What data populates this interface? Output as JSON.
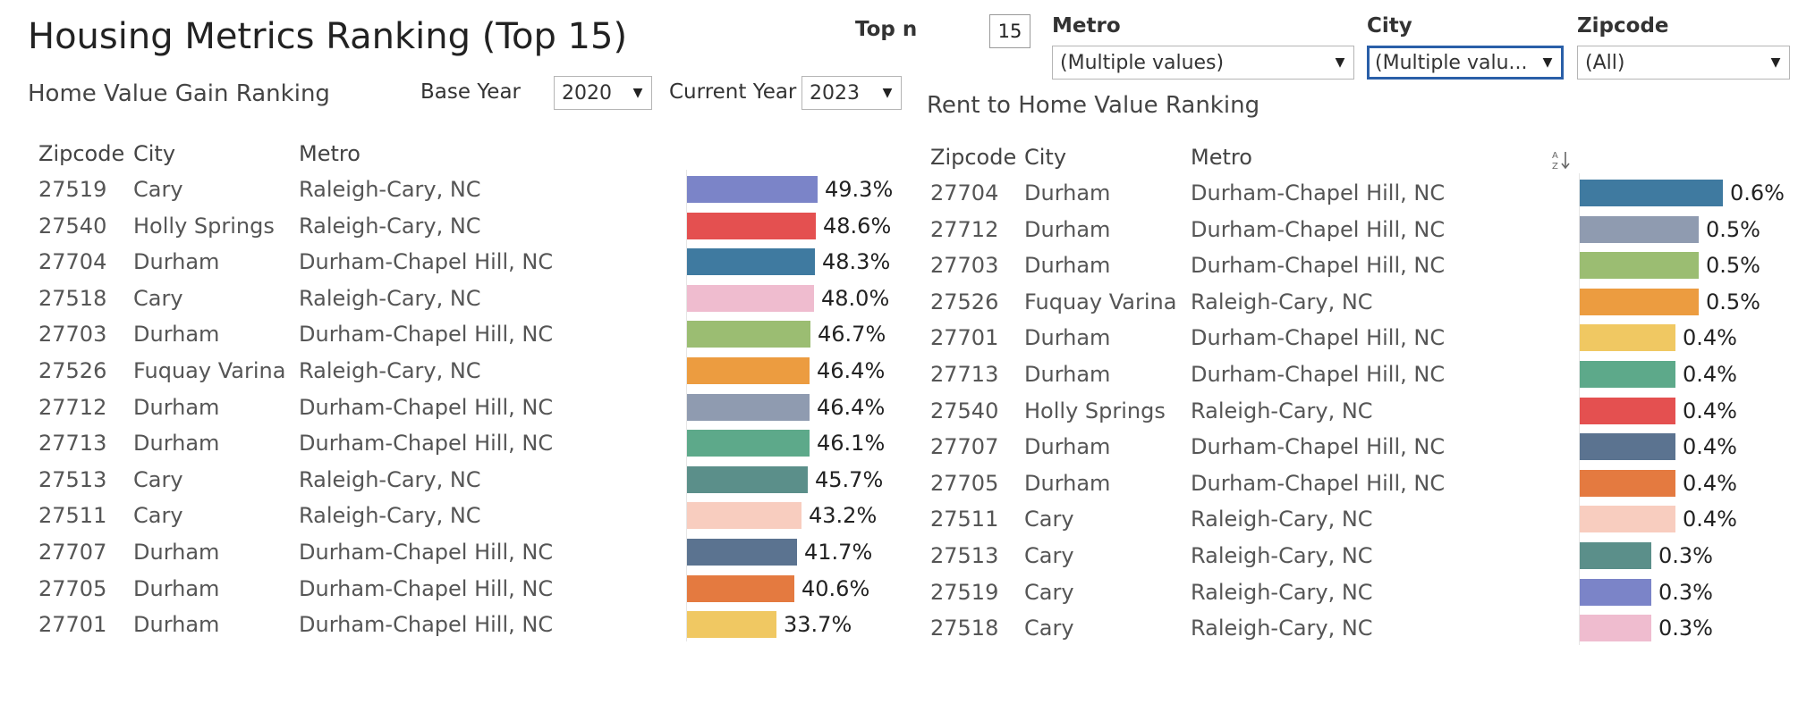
{
  "title": "Housing Metrics Ranking (Top 15)",
  "filters": {
    "top_n_label": "Top n",
    "top_n_value": "15",
    "metro_label": "Metro",
    "metro_value": "(Multiple values)",
    "city_label": "City",
    "city_value": "(Multiple valu...",
    "zipcode_label": "Zipcode",
    "zipcode_value": "(All)"
  },
  "left": {
    "title": "Home Value Gain Ranking",
    "base_year_label": "Base Year",
    "base_year_value": "2020",
    "current_year_label": "Current Year",
    "current_year_value": "2023",
    "headers": {
      "zipcode": "Zipcode",
      "city": "City",
      "metro": "Metro"
    },
    "rows": [
      {
        "zipcode": "27519",
        "city": "Cary",
        "metro": "Raleigh-Cary, NC",
        "value": 49.3,
        "label": "49.3%",
        "color": "#7b84c8"
      },
      {
        "zipcode": "27540",
        "city": "Holly Springs",
        "metro": "Raleigh-Cary, NC",
        "value": 48.6,
        "label": "48.6%",
        "color": "#e45050"
      },
      {
        "zipcode": "27704",
        "city": "Durham",
        "metro": "Durham-Chapel Hill, NC",
        "value": 48.3,
        "label": "48.3%",
        "color": "#3f7aa0"
      },
      {
        "zipcode": "27518",
        "city": "Cary",
        "metro": "Raleigh-Cary, NC",
        "value": 48.0,
        "label": "48.0%",
        "color": "#efbccf"
      },
      {
        "zipcode": "27703",
        "city": "Durham",
        "metro": "Durham-Chapel Hill, NC",
        "value": 46.7,
        "label": "46.7%",
        "color": "#9bbd72"
      },
      {
        "zipcode": "27526",
        "city": "Fuquay Varina",
        "metro": "Raleigh-Cary, NC",
        "value": 46.4,
        "label": "46.4%",
        "color": "#ec9c40"
      },
      {
        "zipcode": "27712",
        "city": "Durham",
        "metro": "Durham-Chapel Hill, NC",
        "value": 46.4,
        "label": "46.4%",
        "color": "#8f9bb0"
      },
      {
        "zipcode": "27713",
        "city": "Durham",
        "metro": "Durham-Chapel Hill, NC",
        "value": 46.1,
        "label": "46.1%",
        "color": "#5da98a"
      },
      {
        "zipcode": "27513",
        "city": "Cary",
        "metro": "Raleigh-Cary, NC",
        "value": 45.7,
        "label": "45.7%",
        "color": "#5b8f8a"
      },
      {
        "zipcode": "27511",
        "city": "Cary",
        "metro": "Raleigh-Cary, NC",
        "value": 43.2,
        "label": "43.2%",
        "color": "#f8cdbf"
      },
      {
        "zipcode": "27707",
        "city": "Durham",
        "metro": "Durham-Chapel Hill, NC",
        "value": 41.7,
        "label": "41.7%",
        "color": "#5b7390"
      },
      {
        "zipcode": "27705",
        "city": "Durham",
        "metro": "Durham-Chapel Hill, NC",
        "value": 40.6,
        "label": "40.6%",
        "color": "#e47a40"
      },
      {
        "zipcode": "27701",
        "city": "Durham",
        "metro": "Durham-Chapel Hill, NC",
        "value": 33.7,
        "label": "33.7%",
        "color": "#f0c862"
      }
    ]
  },
  "right": {
    "title": "Rent to Home Value Ranking",
    "headers": {
      "zipcode": "Zipcode",
      "city": "City",
      "metro": "Metro"
    },
    "sort_icon": "sort-az-icon",
    "rows": [
      {
        "zipcode": "27704",
        "city": "Durham",
        "metro": "Durham-Chapel Hill, NC",
        "value": 0.6,
        "label": "0.6%",
        "color": "#3f7aa0"
      },
      {
        "zipcode": "27712",
        "city": "Durham",
        "metro": "Durham-Chapel Hill, NC",
        "value": 0.5,
        "label": "0.5%",
        "color": "#8f9bb0"
      },
      {
        "zipcode": "27703",
        "city": "Durham",
        "metro": "Durham-Chapel Hill, NC",
        "value": 0.5,
        "label": "0.5%",
        "color": "#9bbd72"
      },
      {
        "zipcode": "27526",
        "city": "Fuquay Varina",
        "metro": "Raleigh-Cary, NC",
        "value": 0.5,
        "label": "0.5%",
        "color": "#ec9c40"
      },
      {
        "zipcode": "27701",
        "city": "Durham",
        "metro": "Durham-Chapel Hill, NC",
        "value": 0.4,
        "label": "0.4%",
        "color": "#f0c862"
      },
      {
        "zipcode": "27713",
        "city": "Durham",
        "metro": "Durham-Chapel Hill, NC",
        "value": 0.4,
        "label": "0.4%",
        "color": "#5da98a"
      },
      {
        "zipcode": "27540",
        "city": "Holly Springs",
        "metro": "Raleigh-Cary, NC",
        "value": 0.4,
        "label": "0.4%",
        "color": "#e45050"
      },
      {
        "zipcode": "27707",
        "city": "Durham",
        "metro": "Durham-Chapel Hill, NC",
        "value": 0.4,
        "label": "0.4%",
        "color": "#5b7390"
      },
      {
        "zipcode": "27705",
        "city": "Durham",
        "metro": "Durham-Chapel Hill, NC",
        "value": 0.4,
        "label": "0.4%",
        "color": "#e47a40"
      },
      {
        "zipcode": "27511",
        "city": "Cary",
        "metro": "Raleigh-Cary, NC",
        "value": 0.4,
        "label": "0.4%",
        "color": "#f8cdbf"
      },
      {
        "zipcode": "27513",
        "city": "Cary",
        "metro": "Raleigh-Cary, NC",
        "value": 0.3,
        "label": "0.3%",
        "color": "#5b8f8a"
      },
      {
        "zipcode": "27519",
        "city": "Cary",
        "metro": "Raleigh-Cary, NC",
        "value": 0.3,
        "label": "0.3%",
        "color": "#7b84c8"
      },
      {
        "zipcode": "27518",
        "city": "Cary",
        "metro": "Raleigh-Cary, NC",
        "value": 0.3,
        "label": "0.3%",
        "color": "#efbccf"
      }
    ]
  }
}
